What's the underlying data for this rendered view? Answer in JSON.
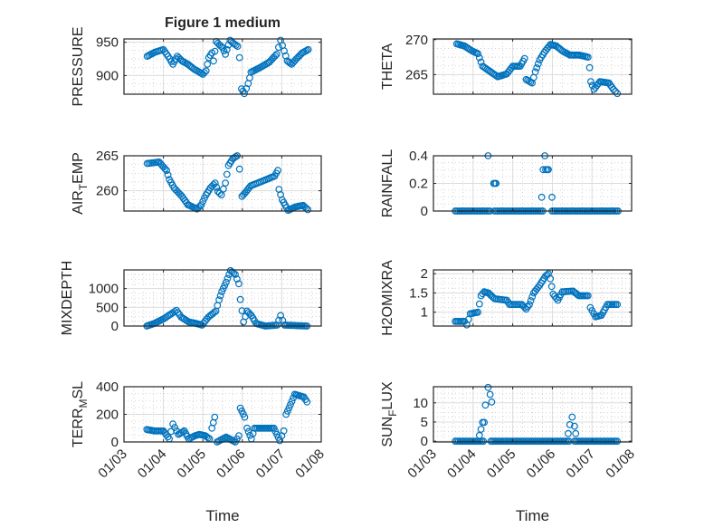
{
  "figure": {
    "title": "Figure 1 medium"
  },
  "colors": {
    "marker": "#0072BD",
    "axis": "#262626",
    "grid": "#dcdcdc",
    "minor_grid": "#c8c8c8"
  },
  "chart_data": [
    {
      "type": "scatter",
      "name": "pressure",
      "ylabel": "PRESSURE",
      "xlabel": "",
      "x_units": "days since 01/03",
      "xlim": [
        0,
        5
      ],
      "ylim": [
        872,
        955
      ],
      "yticks": [
        900,
        950
      ],
      "grid": true,
      "marker": "circle-open",
      "segments": [
        [
          [
            0.59,
            929
          ],
          [
            0.78,
            935
          ],
          [
            1.0,
            939
          ],
          [
            1.12,
            929
          ],
          [
            1.24,
            917
          ],
          [
            1.35,
            929
          ],
          [
            1.47,
            922
          ],
          [
            1.62,
            917
          ],
          [
            1.77,
            910
          ],
          [
            2.0,
            902
          ],
          [
            2.08,
            907
          ],
          [
            2.15,
            927
          ],
          [
            2.23,
            934
          ],
          [
            2.27,
            922
          ],
          [
            2.34,
            951
          ],
          [
            2.42,
            946
          ],
          [
            2.5,
            942
          ],
          [
            2.57,
            932
          ],
          [
            2.69,
            953
          ],
          [
            2.76,
            949
          ],
          [
            2.88,
            944
          ],
          [
            2.93,
            927
          ],
          [
            2.98,
            880
          ],
          [
            3.05,
            873
          ],
          [
            3.15,
            888
          ],
          [
            3.22,
            905
          ],
          [
            3.45,
            912
          ],
          [
            3.68,
            920
          ],
          [
            3.87,
            932
          ],
          [
            3.97,
            953
          ],
          [
            4.06,
            937
          ],
          [
            4.14,
            922
          ],
          [
            4.25,
            917
          ],
          [
            4.37,
            925
          ],
          [
            4.52,
            934
          ],
          [
            4.67,
            939
          ]
        ]
      ],
      "points": []
    },
    {
      "type": "scatter",
      "name": "theta",
      "ylabel": "THETA",
      "xlabel": "",
      "x_units": "days since 01/03",
      "xlim": [
        0,
        5
      ],
      "ylim": [
        262.2,
        270.1
      ],
      "yticks": [
        265,
        270
      ],
      "grid": true,
      "marker": "circle-open",
      "segments": [
        [
          [
            0.59,
            269.4
          ],
          [
            0.78,
            269.1
          ],
          [
            0.97,
            268.4
          ],
          [
            1.12,
            268
          ],
          [
            1.24,
            266.2
          ],
          [
            1.39,
            265.6
          ],
          [
            1.62,
            264.7
          ],
          [
            1.85,
            265.1
          ],
          [
            2.0,
            266.2
          ],
          [
            2.19,
            266.2
          ],
          [
            2.3,
            267.3
          ],
          [
            2.34,
            264.3
          ],
          [
            2.49,
            263.8
          ],
          [
            2.57,
            265.4
          ],
          [
            2.68,
            267.1
          ],
          [
            2.8,
            268.2
          ],
          [
            2.95,
            269.3
          ],
          [
            3.1,
            269.1
          ],
          [
            3.25,
            268.4
          ],
          [
            3.44,
            267.8
          ],
          [
            3.67,
            267.8
          ],
          [
            3.9,
            267.5
          ],
          [
            3.94,
            266
          ],
          [
            3.97,
            264
          ],
          [
            4.05,
            262.9
          ],
          [
            4.2,
            264
          ],
          [
            4.43,
            263.8
          ],
          [
            4.54,
            262.9
          ],
          [
            4.64,
            262.3
          ]
        ]
      ],
      "points": []
    },
    {
      "type": "scatter",
      "name": "air-temp",
      "ylabel": "AIR_TEMP",
      "xlabel": "",
      "x_units": "days since 01/03",
      "xlim": [
        0,
        5
      ],
      "ylim": [
        257.1,
        265
      ],
      "yticks": [
        260,
        265
      ],
      "grid": true,
      "marker": "circle-open",
      "segments": [
        [
          [
            0.59,
            263.9
          ],
          [
            0.89,
            264.1
          ],
          [
            1.08,
            262.9
          ],
          [
            1.15,
            261.6
          ],
          [
            1.27,
            260.4
          ],
          [
            1.47,
            259.2
          ],
          [
            1.62,
            258
          ],
          [
            1.85,
            257.4
          ],
          [
            1.96,
            258
          ],
          [
            2.08,
            259.4
          ],
          [
            2.19,
            260.4
          ],
          [
            2.31,
            261.1
          ],
          [
            2.38,
            259.9
          ],
          [
            2.47,
            259.4
          ],
          [
            2.57,
            261.1
          ],
          [
            2.65,
            263.6
          ],
          [
            2.76,
            264.6
          ],
          [
            2.87,
            265
          ],
          [
            2.93,
            263.1
          ],
          [
            2.99,
            259.2
          ],
          [
            3.1,
            259.9
          ],
          [
            3.21,
            260.7
          ],
          [
            3.52,
            261.4
          ],
          [
            3.82,
            262.1
          ],
          [
            3.9,
            262.9
          ],
          [
            3.93,
            260.2
          ],
          [
            4.01,
            258.7
          ],
          [
            4.16,
            257.2
          ],
          [
            4.35,
            257.7
          ],
          [
            4.54,
            257.9
          ],
          [
            4.66,
            257.3
          ]
        ]
      ],
      "points": []
    },
    {
      "type": "scatter",
      "name": "rainfall",
      "ylabel": "RAINFALL",
      "xlabel": "",
      "x_units": "days since 01/03",
      "xlim": [
        0,
        5
      ],
      "ylim": [
        0,
        0.4
      ],
      "yticks": [
        0,
        0.2,
        0.4
      ],
      "grid": true,
      "marker": "circle-open",
      "segments": [
        [
          [
            0.55,
            0
          ],
          [
            1.43,
            0
          ]
        ],
        [
          [
            1.54,
            0
          ],
          [
            2.76,
            0
          ]
        ],
        [
          [
            2.99,
            0
          ],
          [
            4.66,
            0
          ]
        ]
      ],
      "points": [
        [
          1.38,
          0.4
        ],
        [
          1.52,
          0.2
        ],
        [
          1.55,
          0.2
        ],
        [
          1.58,
          0.2
        ],
        [
          2.73,
          0.1
        ],
        [
          2.77,
          0.3
        ],
        [
          2.81,
          0.4
        ],
        [
          2.83,
          0.3
        ],
        [
          2.87,
          0.3
        ],
        [
          2.9,
          0.3
        ],
        [
          2.99,
          0.1
        ]
      ]
    },
    {
      "type": "scatter",
      "name": "mixdepth",
      "ylabel": "MIXDEPTH",
      "xlabel": "",
      "x_units": "days since 01/03",
      "xlim": [
        0,
        5
      ],
      "ylim": [
        0,
        1500
      ],
      "yticks": [
        0,
        500,
        1000
      ],
      "grid": true,
      "marker": "circle-open",
      "segments": [
        [
          [
            0.58,
            0
          ],
          [
            0.77,
            70
          ],
          [
            1.0,
            190
          ],
          [
            1.19,
            320
          ],
          [
            1.33,
            420
          ],
          [
            1.45,
            240
          ],
          [
            1.64,
            110
          ],
          [
            1.83,
            70
          ],
          [
            1.98,
            25
          ],
          [
            2.14,
            240
          ],
          [
            2.33,
            400
          ],
          [
            2.41,
            700
          ],
          [
            2.48,
            920
          ],
          [
            2.59,
            1170
          ],
          [
            2.7,
            1480
          ],
          [
            2.82,
            1380
          ],
          [
            2.91,
            1130
          ],
          [
            2.95,
            710
          ],
          [
            3.03,
            110
          ],
          [
            3.12,
            400
          ],
          [
            3.23,
            280
          ],
          [
            3.35,
            70
          ],
          [
            3.58,
            0
          ],
          [
            3.88,
            25
          ],
          [
            3.97,
            280
          ],
          [
            4.07,
            25
          ],
          [
            4.64,
            0
          ]
        ]
      ],
      "points": []
    },
    {
      "type": "scatter",
      "name": "h2omixra",
      "ylabel": "H2OMIXRA",
      "xlabel": "",
      "x_units": "days since 01/03",
      "xlim": [
        0,
        5
      ],
      "ylim": [
        0.64,
        2.1
      ],
      "yticks": [
        1,
        1.5,
        2
      ],
      "grid": true,
      "marker": "circle-open",
      "segments": [
        [
          [
            0.55,
            0.76
          ],
          [
            0.78,
            0.76
          ],
          [
            0.84,
            0.67
          ],
          [
            0.93,
            0.96
          ],
          [
            1.12,
            1.0
          ],
          [
            1.2,
            1.43
          ],
          [
            1.28,
            1.53
          ],
          [
            1.39,
            1.5
          ],
          [
            1.54,
            1.35
          ],
          [
            1.85,
            1.31
          ],
          [
            1.92,
            1.2
          ],
          [
            2.23,
            1.2
          ],
          [
            2.34,
            1.08
          ],
          [
            2.42,
            1.2
          ],
          [
            2.53,
            1.5
          ],
          [
            2.68,
            1.7
          ],
          [
            2.83,
            1.94
          ],
          [
            2.9,
            2.0
          ],
          [
            2.95,
            1.87
          ],
          [
            3.02,
            1.47
          ],
          [
            3.14,
            1.31
          ],
          [
            3.25,
            1.53
          ],
          [
            3.52,
            1.55
          ],
          [
            3.67,
            1.43
          ],
          [
            3.9,
            1.43
          ],
          [
            3.96,
            1.12
          ],
          [
            4.09,
            0.88
          ],
          [
            4.24,
            0.92
          ],
          [
            4.39,
            1.2
          ],
          [
            4.64,
            1.2
          ]
        ]
      ],
      "points": []
    },
    {
      "type": "scatter",
      "name": "terr-msl",
      "ylabel": "TERR_MSL",
      "xlabel": "Time",
      "x_units": "days since 01/03",
      "xlim": [
        0,
        5
      ],
      "ylim": [
        0,
        400
      ],
      "yticks": [
        0,
        200,
        400
      ],
      "xticklabels": [
        "01/03",
        "01/04",
        "01/05",
        "01/06",
        "01/07",
        "01/08"
      ],
      "grid": true,
      "marker": "circle-open",
      "segments": [
        [
          [
            0.58,
            90
          ],
          [
            0.77,
            80
          ],
          [
            1.0,
            80
          ],
          [
            1.15,
            22
          ],
          [
            1.24,
            130
          ],
          [
            1.38,
            55
          ],
          [
            1.53,
            80
          ],
          [
            1.64,
            22
          ],
          [
            1.8,
            45
          ],
          [
            1.91,
            55
          ],
          [
            2.06,
            45
          ],
          [
            2.17,
            22
          ],
          [
            2.23,
            100
          ],
          [
            2.3,
            180
          ],
          [
            2.36,
            0
          ],
          [
            2.59,
            35
          ],
          [
            2.82,
            0
          ],
          [
            2.91,
            45
          ],
          [
            2.95,
            245
          ],
          [
            3.06,
            180
          ],
          [
            3.12,
            100
          ],
          [
            3.23,
            22
          ],
          [
            3.31,
            100
          ],
          [
            3.8,
            100
          ],
          [
            3.95,
            10
          ],
          [
            4.05,
            80
          ],
          [
            4.11,
            200
          ],
          [
            4.22,
            270
          ],
          [
            4.33,
            345
          ],
          [
            4.56,
            325
          ],
          [
            4.64,
            290
          ]
        ]
      ],
      "points": []
    },
    {
      "type": "scatter",
      "name": "sun-flux",
      "ylabel": "SUN_FLUX",
      "xlabel": "Time",
      "x_units": "days since 01/03",
      "xlim": [
        0,
        5
      ],
      "ylim": [
        -0.2,
        14.2
      ],
      "yticks": [
        0,
        5,
        10
      ],
      "xticklabels": [
        "01/03",
        "01/04",
        "01/05",
        "01/06",
        "01/07",
        "01/08"
      ],
      "grid": true,
      "marker": "circle-open",
      "segments": [
        [
          [
            0.55,
            0
          ],
          [
            1.26,
            0
          ]
        ],
        [
          [
            1.45,
            0
          ],
          [
            3.42,
            0
          ]
        ],
        [
          [
            3.56,
            0
          ],
          [
            4.64,
            0
          ]
        ]
      ],
      "points": [
        [
          1.16,
          1.5
        ],
        [
          1.2,
          3.1
        ],
        [
          1.24,
          4.9
        ],
        [
          1.28,
          4.9
        ],
        [
          1.31,
          9.4
        ],
        [
          1.38,
          14
        ],
        [
          1.43,
          12.2
        ],
        [
          1.47,
          10.2
        ],
        [
          3.4,
          2
        ],
        [
          3.44,
          4.3
        ],
        [
          3.5,
          6.3
        ],
        [
          3.56,
          3.9
        ],
        [
          3.59,
          2
        ]
      ]
    }
  ]
}
